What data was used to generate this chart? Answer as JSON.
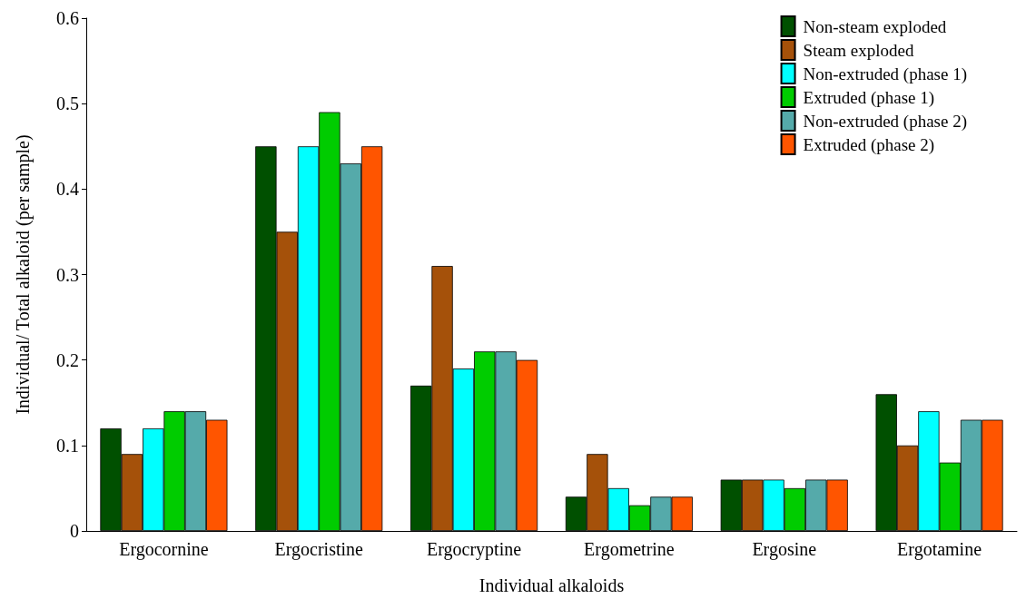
{
  "chart_data": {
    "type": "bar",
    "xlabel": "Individual alkaloids",
    "ylabel": "Individual/ Total alkaloid (per sample)",
    "categories": [
      "Ergocornine",
      "Ergocristine",
      "Ergocryptine",
      "Ergometrine",
      "Ergosine",
      "Ergotamine"
    ],
    "series": [
      {
        "name": "Non-steam exploded",
        "color": "#005000",
        "values": [
          0.12,
          0.45,
          0.17,
          0.04,
          0.06,
          0.16
        ]
      },
      {
        "name": "Steam exploded",
        "color": "#a5510a",
        "values": [
          0.09,
          0.35,
          0.31,
          0.09,
          0.06,
          0.1
        ]
      },
      {
        "name": "Non-extruded (phase 1)",
        "color": "#00ffff",
        "values": [
          0.12,
          0.45,
          0.19,
          0.05,
          0.06,
          0.14
        ]
      },
      {
        "name": "Extruded (phase 1)",
        "color": "#00cc00",
        "values": [
          0.14,
          0.49,
          0.21,
          0.03,
          0.05,
          0.08
        ]
      },
      {
        "name": "Non-extruded (phase 2)",
        "color": "#55aaaa",
        "values": [
          0.14,
          0.43,
          0.21,
          0.04,
          0.06,
          0.13
        ]
      },
      {
        "name": "Extruded (phase 2)",
        "color": "#ff5500",
        "values": [
          0.13,
          0.45,
          0.2,
          0.04,
          0.06,
          0.13
        ]
      }
    ],
    "ylim": [
      0,
      0.6
    ],
    "yticks": [
      0,
      0.1,
      0.2,
      0.3,
      0.4,
      0.5,
      0.6
    ],
    "grid": false,
    "legend": "top right"
  }
}
